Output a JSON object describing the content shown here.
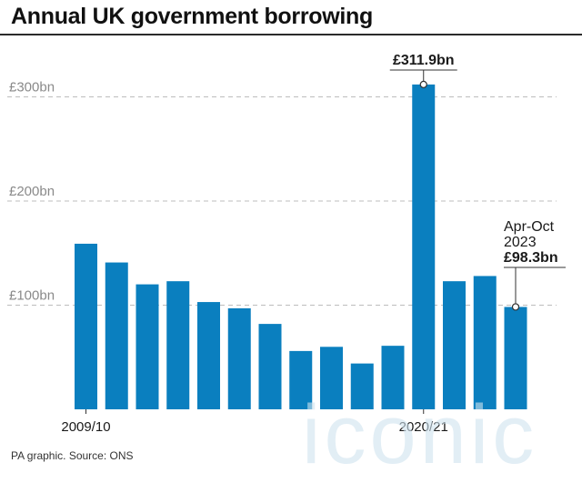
{
  "header": {
    "title": "Annual UK government borrowing"
  },
  "footer": {
    "source": "PA graphic. Source: ONS"
  },
  "watermark": {
    "text": "iconic"
  },
  "colors": {
    "bar": "#0a7fbf",
    "grid": "#bdbdbd",
    "text": "#1a1a1a",
    "watermark": "#cfe3ef"
  },
  "chart_data": {
    "type": "bar",
    "title": "Annual UK government borrowing",
    "xlabel": "",
    "ylabel": "",
    "ylim": [
      0,
      340
    ],
    "grid": true,
    "yticks": [
      {
        "value": 100,
        "label": "£100bn"
      },
      {
        "value": 200,
        "label": "£200bn"
      },
      {
        "value": 300,
        "label": "£300bn"
      }
    ],
    "categories": [
      "2009/10",
      "",
      "",
      "",
      "",
      "",
      "",
      "",
      "",
      "",
      "",
      "2020/21",
      "",
      "",
      "Apr-Oct 2023"
    ],
    "values": [
      159,
      141,
      120,
      123,
      103,
      97,
      82,
      56,
      60,
      44,
      61,
      311.9,
      123,
      128,
      98.3
    ],
    "x_labels_shown": [
      {
        "index": 0,
        "label": "2009/10"
      },
      {
        "index": 11,
        "label": "2020/21"
      }
    ],
    "annotations": [
      {
        "index": 11,
        "lines": [
          "£311.9bn"
        ],
        "bold_last": true
      },
      {
        "index": 14,
        "lines": [
          "Apr-Oct",
          "2023",
          "£98.3bn"
        ],
        "bold_last": true
      }
    ]
  }
}
